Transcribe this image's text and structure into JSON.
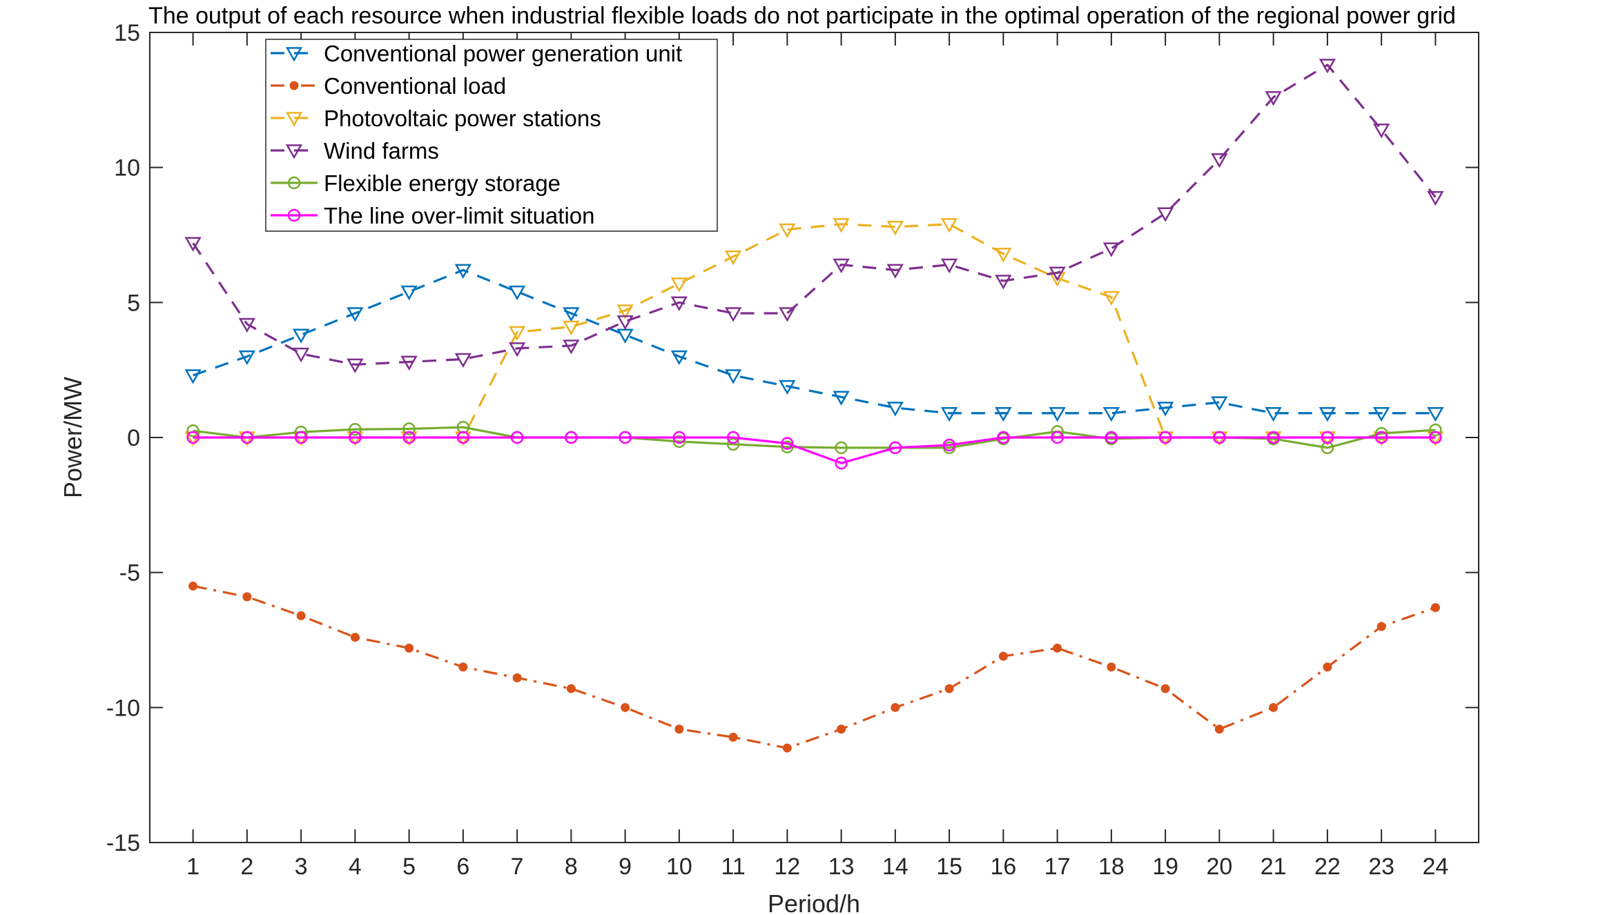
{
  "chart_data": {
    "type": "line",
    "title": "The output of each resource when industrial flexible loads do not participate in the optimal operation of the regional power grid",
    "xlabel": "Period/h",
    "ylabel": "Power/MW",
    "xlim": [
      0.2,
      24.8
    ],
    "ylim": [
      -15,
      15
    ],
    "xticks": [
      1,
      2,
      3,
      4,
      5,
      6,
      7,
      8,
      9,
      10,
      11,
      12,
      13,
      14,
      15,
      16,
      17,
      18,
      19,
      20,
      21,
      22,
      23,
      24
    ],
    "xtick_labels": [
      "1",
      "2",
      "3",
      "4",
      "5",
      "6",
      "7",
      "8",
      "9",
      "10",
      "11",
      "12",
      "13",
      "14",
      "15",
      "16",
      "17",
      "18",
      "19",
      "20",
      "21",
      "22",
      "23",
      "24"
    ],
    "yticks": [
      -15,
      -10,
      -5,
      0,
      5,
      10,
      15
    ],
    "ytick_labels": [
      "-15",
      "-10",
      "-5",
      "0",
      "5",
      "10",
      "15"
    ],
    "x": [
      1,
      2,
      3,
      4,
      5,
      6,
      7,
      8,
      9,
      10,
      11,
      12,
      13,
      14,
      15,
      16,
      17,
      18,
      19,
      20,
      21,
      22,
      23,
      24
    ],
    "legend_position": "top-left",
    "series": [
      {
        "name": "Conventional power generation unit",
        "color": "#0072BD",
        "line_style": "dashed",
        "marker": "triangle-down",
        "values": [
          2.3,
          3.0,
          3.8,
          4.6,
          5.4,
          6.2,
          5.4,
          4.6,
          3.8,
          3.0,
          2.3,
          1.9,
          1.5,
          1.1,
          0.9,
          0.9,
          0.9,
          0.9,
          1.1,
          1.3,
          0.9,
          0.9,
          0.9,
          0.9
        ]
      },
      {
        "name": "Conventional load",
        "color": "#D95319",
        "line_style": "dashdot",
        "marker": "dot",
        "values": [
          -5.5,
          -5.9,
          -6.6,
          -7.4,
          -7.8,
          -8.5,
          -8.9,
          -9.3,
          -10.0,
          -10.8,
          -11.1,
          -11.5,
          -10.8,
          -10.0,
          -9.3,
          -8.1,
          -7.8,
          -8.5,
          -9.3,
          -10.8,
          -10.0,
          -8.5,
          -7.0,
          -6.3
        ]
      },
      {
        "name": "Photovoltaic power stations",
        "color": "#EDB120",
        "line_style": "dashed",
        "marker": "triangle-down",
        "values": [
          0,
          0,
          0,
          0,
          0,
          0,
          3.9,
          4.1,
          4.7,
          5.7,
          6.7,
          7.7,
          7.9,
          7.8,
          7.9,
          6.8,
          5.9,
          5.2,
          0,
          0,
          0,
          0,
          0,
          0
        ]
      },
      {
        "name": "Wind farms",
        "color": "#7E2F8E",
        "line_style": "dashed",
        "marker": "triangle-down",
        "values": [
          7.2,
          4.2,
          3.1,
          2.7,
          2.8,
          2.9,
          3.3,
          3.4,
          4.3,
          5.0,
          4.6,
          4.6,
          6.4,
          6.2,
          6.4,
          5.8,
          6.1,
          7.0,
          8.3,
          10.3,
          12.6,
          13.8,
          11.4,
          8.9
        ]
      },
      {
        "name": "Flexible energy storage",
        "color": "#77AC30",
        "line_style": "solid",
        "marker": "circle",
        "values": [
          0.25,
          0.0,
          0.2,
          0.3,
          0.32,
          0.38,
          0.0,
          0.0,
          0.0,
          -0.15,
          -0.25,
          -0.35,
          -0.38,
          -0.38,
          -0.38,
          -0.05,
          0.22,
          -0.05,
          0.0,
          0.0,
          -0.05,
          -0.38,
          0.15,
          0.28
        ]
      },
      {
        "name": "The line over-limit situation",
        "color": "#FF00FF",
        "line_style": "solid",
        "marker": "circle",
        "values": [
          0,
          0,
          0,
          0,
          0,
          0,
          0,
          0,
          0,
          0,
          0,
          -0.22,
          -0.95,
          -0.38,
          -0.28,
          0,
          0,
          0,
          0,
          0,
          0,
          0,
          0,
          0
        ]
      }
    ]
  }
}
